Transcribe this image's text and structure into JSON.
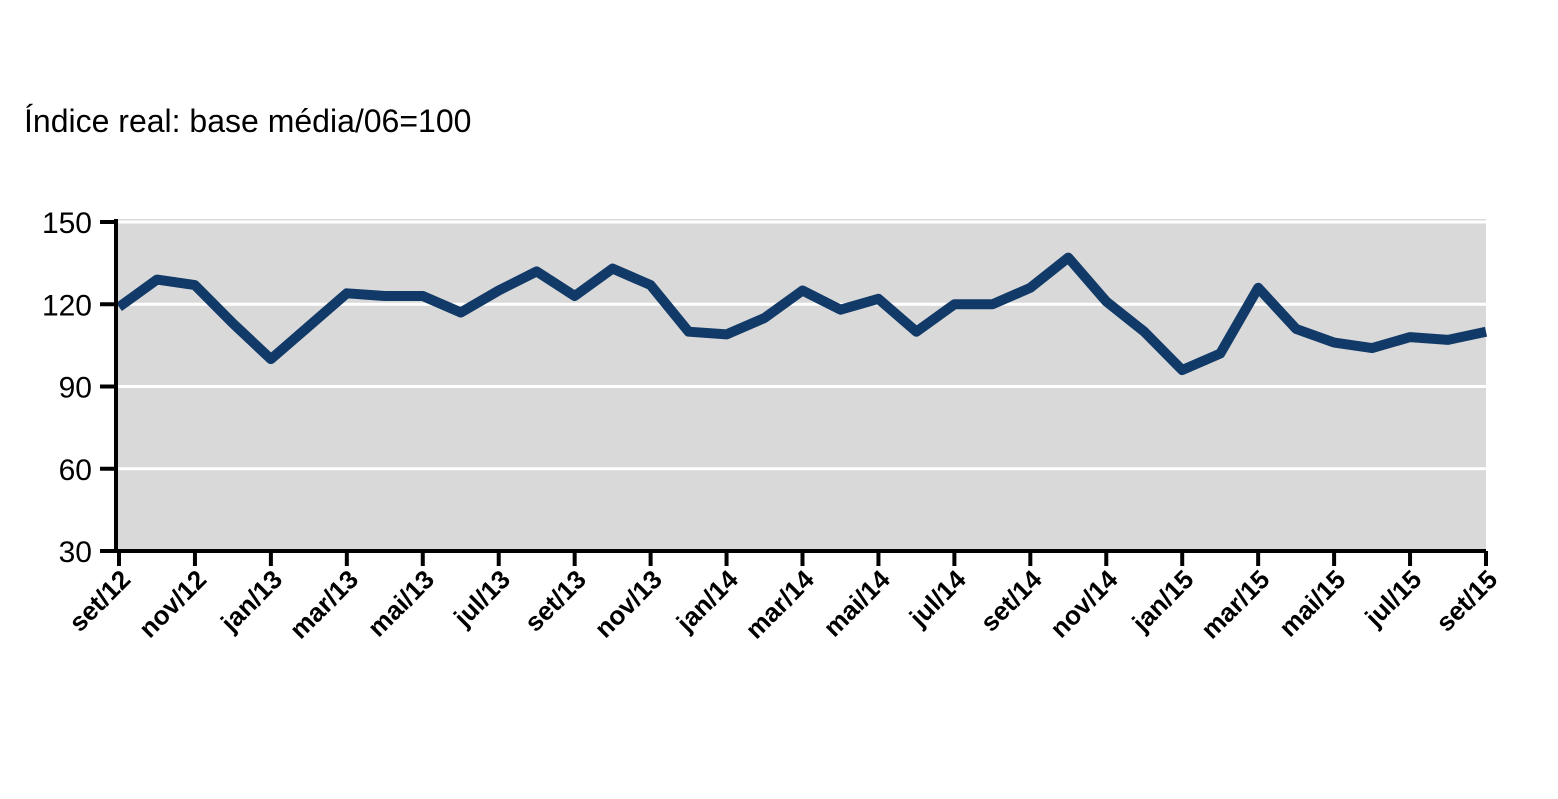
{
  "title": "Índice real: base média/06=100",
  "chart_data": {
    "type": "line",
    "title": "Índice real: base média/06=100",
    "x": [
      "set/12",
      "out/12",
      "nov/12",
      "dez/12",
      "jan/13",
      "fev/13",
      "mar/13",
      "abr/13",
      "mai/13",
      "jun/13",
      "jul/13",
      "ago/13",
      "set/13",
      "out/13",
      "nov/13",
      "dez/13",
      "jan/14",
      "fev/14",
      "mar/14",
      "abr/14",
      "mai/14",
      "jun/14",
      "jul/14",
      "ago/14",
      "set/14",
      "out/14",
      "nov/14",
      "dez/14",
      "jan/15",
      "fev/15",
      "mar/15",
      "abr/15",
      "mai/15",
      "jun/15",
      "jul/15",
      "ago/15",
      "set/15"
    ],
    "series": [
      {
        "name": "Índice real (base média/06=100)",
        "values": [
          119,
          129,
          127,
          113,
          100,
          112,
          124,
          123,
          123,
          117,
          125,
          132,
          123,
          133,
          127,
          110,
          109,
          115,
          125,
          118,
          122,
          110,
          120,
          120,
          126,
          137,
          121,
          110,
          96,
          102,
          126,
          111,
          106,
          104,
          108,
          107,
          110
        ]
      }
    ],
    "x_tick_labels": [
      "set/12",
      "nov/12",
      "jan/13",
      "mar/13",
      "mai/13",
      "jul/13",
      "set/13",
      "nov/13",
      "jan/14",
      "mar/14",
      "mai/14",
      "jul/14",
      "set/14",
      "nov/14",
      "jan/15",
      "mar/15",
      "mai/15",
      "jul/15",
      "set/15"
    ],
    "y_ticks": [
      150,
      120,
      90,
      60,
      30
    ],
    "ylim": [
      30,
      150
    ],
    "xlabel": "",
    "ylabel": "",
    "grid": "horizontal-white-gridlines",
    "legend": "none",
    "colors": {
      "line": "#123A68",
      "plot_background": "#D9D9D9",
      "gridline": "#FFFFFF",
      "axis": "#000000",
      "text": "#000000",
      "page_background": "#FFFFFF"
    }
  }
}
